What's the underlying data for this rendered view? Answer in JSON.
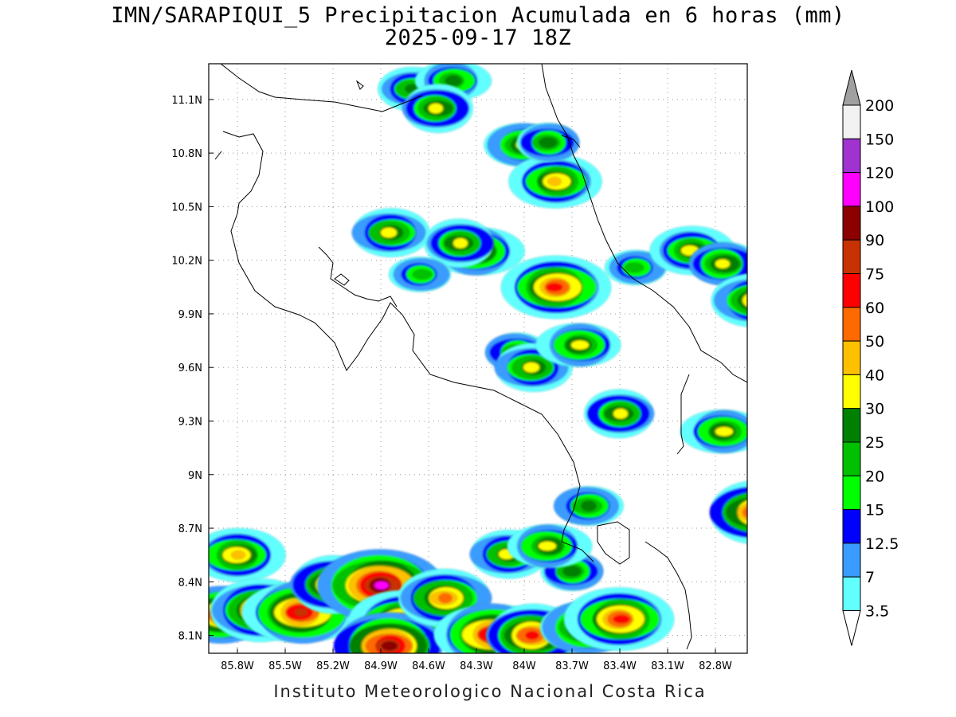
{
  "title_line1": "IMN/SARAPIQUI_5 Precipitacion Acumulada en 6 horas (mm)",
  "title_line2": "2025-09-17 18Z",
  "credit": "Instituto Meteorologico Nacional Costa Rica",
  "map": {
    "lon_ticks": [
      "85.8W",
      "85.5W",
      "85.2W",
      "84.9W",
      "84.6W",
      "84.3W",
      "84W",
      "83.7W",
      "83.4W",
      "83.1W",
      "82.8W"
    ],
    "lat_ticks": [
      "11.1N",
      "10.8N",
      "10.5N",
      "10.2N",
      "9.9N",
      "9.6N",
      "9.3N",
      "9N",
      "8.7N",
      "8.4N",
      "8.1N"
    ],
    "grid": true,
    "background_color": "#ffffff",
    "coastline_color": "#000000"
  },
  "colorbar": {
    "levels": [
      "3.5",
      "7",
      "12.5",
      "15",
      "20",
      "25",
      "30",
      "40",
      "50",
      "60",
      "75",
      "90",
      "100",
      "120",
      "150",
      "200"
    ],
    "colors": [
      "#ffffff",
      "#62ffff",
      "#3b9cff",
      "#0000ff",
      "#00ff00",
      "#00c000",
      "#008000",
      "#ffff00",
      "#ffc000",
      "#ff6a00",
      "#ff0000",
      "#c83200",
      "#8c0000",
      "#ff00ff",
      "#a033d0",
      "#f2f2f2",
      "#a0a0a0"
    ],
    "min_arrow_color": "#ffffff",
    "max_arrow_color": "#a0a0a0"
  },
  "precip_cells": [
    {
      "lon": -84.7,
      "lat": 11.15,
      "level": 6
    },
    {
      "lon": -84.45,
      "lat": 11.2,
      "level": 6
    },
    {
      "lon": -84.55,
      "lat": 11.05,
      "level": 7
    },
    {
      "lon": -84.0,
      "lat": 10.85,
      "level": 7
    },
    {
      "lon": -83.8,
      "lat": 10.65,
      "level": 8
    },
    {
      "lon": -83.85,
      "lat": 10.85,
      "level": 6
    },
    {
      "lon": -84.84,
      "lat": 10.35,
      "level": 7
    },
    {
      "lon": -84.3,
      "lat": 10.25,
      "level": 8
    },
    {
      "lon": -84.4,
      "lat": 10.3,
      "level": 7
    },
    {
      "lon": -84.65,
      "lat": 10.13,
      "level": 5
    },
    {
      "lon": -83.8,
      "lat": 10.04,
      "level": 10
    },
    {
      "lon": -84.05,
      "lat": 9.68,
      "level": 6
    },
    {
      "lon": -83.95,
      "lat": 9.6,
      "level": 7
    },
    {
      "lon": -83.65,
      "lat": 9.73,
      "level": 7
    },
    {
      "lon": -83.4,
      "lat": 9.35,
      "level": 7
    },
    {
      "lon": -83.3,
      "lat": 10.15,
      "level": 5
    },
    {
      "lon": -82.95,
      "lat": 10.25,
      "level": 7
    },
    {
      "lon": -82.75,
      "lat": 10.18,
      "level": 7
    },
    {
      "lon": -82.55,
      "lat": 9.98,
      "level": 8
    },
    {
      "lon": -82.75,
      "lat": 9.25,
      "level": 7
    },
    {
      "lon": -82.55,
      "lat": 8.78,
      "level": 10
    },
    {
      "lon": -83.6,
      "lat": 8.82,
      "level": 6
    },
    {
      "lon": -85.8,
      "lat": 8.55,
      "level": 8
    },
    {
      "lon": -85.9,
      "lat": 8.22,
      "level": 10
    },
    {
      "lon": -85.65,
      "lat": 8.25,
      "level": 10
    },
    {
      "lon": -85.4,
      "lat": 8.22,
      "level": 11
    },
    {
      "lon": -85.2,
      "lat": 8.38,
      "level": 9
    },
    {
      "lon": -84.9,
      "lat": 8.38,
      "level": 13
    },
    {
      "lon": -84.75,
      "lat": 8.18,
      "level": 10
    },
    {
      "lon": -84.85,
      "lat": 8.05,
      "level": 12
    },
    {
      "lon": -84.5,
      "lat": 8.3,
      "level": 9
    },
    {
      "lon": -84.2,
      "lat": 8.1,
      "level": 11
    },
    {
      "lon": -83.95,
      "lat": 8.1,
      "level": 10
    },
    {
      "lon": -83.6,
      "lat": 8.15,
      "level": 9
    },
    {
      "lon": -83.4,
      "lat": 8.2,
      "level": 10
    },
    {
      "lon": -83.7,
      "lat": 8.45,
      "level": 6
    },
    {
      "lon": -84.1,
      "lat": 8.55,
      "level": 7
    },
    {
      "lon": -83.85,
      "lat": 8.6,
      "level": 7
    }
  ]
}
